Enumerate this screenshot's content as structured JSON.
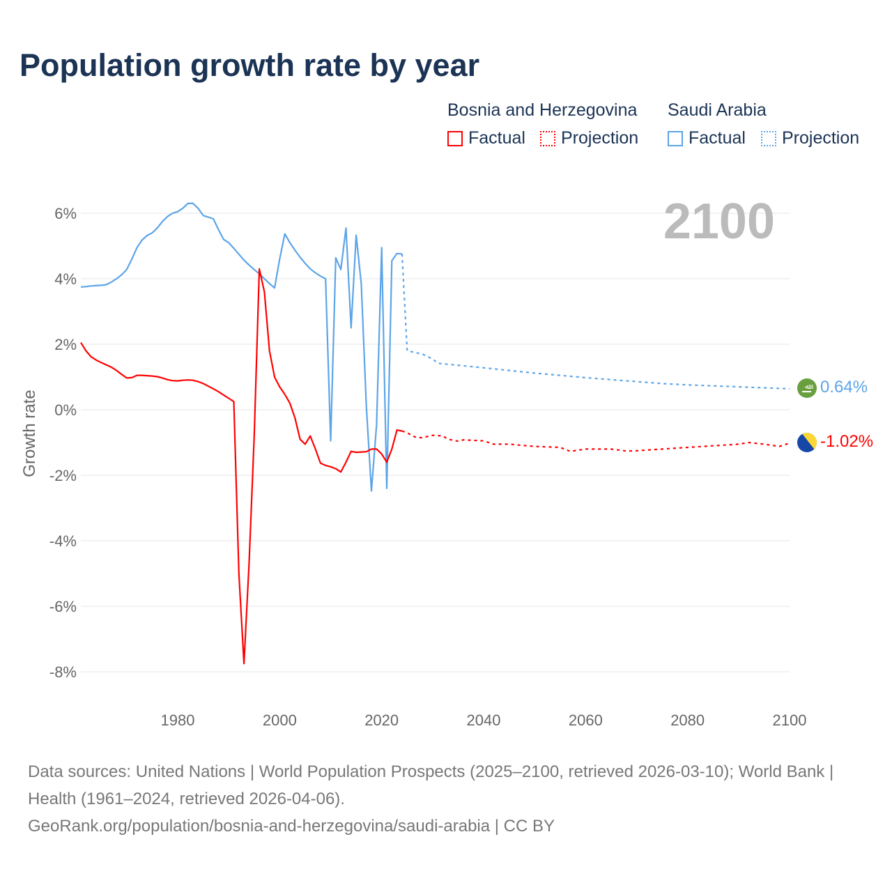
{
  "title": "Population growth rate by year",
  "legend": {
    "groups": [
      {
        "name": "Bosnia and Herzegovina",
        "factual": "Factual",
        "projection": "Projection",
        "color": "#ff0000"
      },
      {
        "name": "Saudi Arabia",
        "factual": "Factual",
        "projection": "Projection",
        "color": "#5ca4e8"
      }
    ]
  },
  "year_label": "2100",
  "end_labels": {
    "saudi": "0.64%",
    "bosnia": "-1.02%"
  },
  "source_lines": [
    "Data sources: United Nations | World Population Prospects (2025–2100, retrieved 2026-03-10); World Bank | Health (1961–2024, retrieved 2026-04-06).",
    "GeoRank.org/population/bosnia-and-herzegovina/saudi-arabia | CC BY"
  ],
  "chart_data": {
    "type": "line",
    "title": "Population growth rate by year",
    "xlabel": "",
    "ylabel": "Growth rate",
    "xlim": [
      1961,
      2100
    ],
    "ylim": [
      -8.8,
      6.8
    ],
    "xticks": [
      1980,
      2000,
      2020,
      2040,
      2060,
      2080,
      2100
    ],
    "xtick_labels": [
      "1980",
      "2000",
      "2020",
      "2040",
      "2060",
      "2080",
      "2100"
    ],
    "yticks": [
      6,
      4,
      2,
      0,
      -2,
      -4,
      -6,
      -8
    ],
    "ytick_labels": [
      "6%",
      "4%",
      "2%",
      "0%",
      "-2%",
      "-4%",
      "-6%",
      "-8%"
    ],
    "series": [
      {
        "name": "Saudi Arabia Factual",
        "color": "#5ca4e8",
        "style": "solid",
        "x": [
          1961,
          1962,
          1963,
          1964,
          1965,
          1966,
          1967,
          1968,
          1969,
          1970,
          1971,
          1972,
          1973,
          1974,
          1975,
          1976,
          1977,
          1978,
          1979,
          1980,
          1981,
          1982,
          1983,
          1984,
          1985,
          1986,
          1987,
          1988,
          1989,
          1990,
          1991,
          1992,
          1993,
          1994,
          1995,
          1996,
          1997,
          1998,
          1999,
          2000,
          2001,
          2002,
          2003,
          2004,
          2005,
          2006,
          2007,
          2008,
          2009,
          2010,
          2011,
          2012,
          2013,
          2014,
          2015,
          2016,
          2017,
          2018,
          2019,
          2020,
          2021,
          2022,
          2023,
          2024
        ],
        "y": [
          3.75,
          3.76,
          3.78,
          3.79,
          3.8,
          3.82,
          3.9,
          4.0,
          4.12,
          4.28,
          4.6,
          4.95,
          5.18,
          5.32,
          5.4,
          5.55,
          5.75,
          5.9,
          6.0,
          6.05,
          6.15,
          6.3,
          6.3,
          6.15,
          5.93,
          5.88,
          5.83,
          5.5,
          5.2,
          5.1,
          4.93,
          4.75,
          4.57,
          4.42,
          4.28,
          4.15,
          4.0,
          3.85,
          3.72,
          4.6,
          5.37,
          5.1,
          4.87,
          4.66,
          4.47,
          4.3,
          4.18,
          4.08,
          4.0,
          -0.95,
          4.64,
          4.28,
          5.55,
          2.5,
          5.33,
          3.85,
          0.1,
          -2.48,
          -0.45,
          4.95,
          -2.4,
          4.55,
          4.77,
          4.76
        ]
      },
      {
        "name": "Saudi Arabia Projection",
        "color": "#5ca4e8",
        "style": "dotted",
        "x": [
          2024,
          2025,
          2028,
          2030,
          2031,
          2035,
          2040,
          2045,
          2050,
          2055,
          2060,
          2065,
          2070,
          2075,
          2080,
          2085,
          2090,
          2095,
          2100
        ],
        "y": [
          4.76,
          1.8,
          1.7,
          1.55,
          1.42,
          1.36,
          1.28,
          1.2,
          1.12,
          1.05,
          0.98,
          0.92,
          0.86,
          0.8,
          0.76,
          0.73,
          0.7,
          0.67,
          0.64
        ]
      },
      {
        "name": "Bosnia and Herzegovina Factual",
        "color": "#ff0000",
        "style": "solid",
        "x": [
          1961,
          1962,
          1963,
          1964,
          1965,
          1966,
          1967,
          1968,
          1969,
          1970,
          1971,
          1972,
          1973,
          1974,
          1975,
          1976,
          1977,
          1978,
          1979,
          1980,
          1981,
          1982,
          1983,
          1984,
          1985,
          1986,
          1987,
          1988,
          1989,
          1990,
          1991,
          1992,
          1993,
          1994,
          1995,
          1996,
          1997,
          1998,
          1999,
          2000,
          2001,
          2002,
          2003,
          2004,
          2005,
          2006,
          2007,
          2008,
          2009,
          2010,
          2011,
          2012,
          2013,
          2014,
          2015,
          2016,
          2017,
          2018,
          2019,
          2020,
          2021,
          2022,
          2023,
          2024
        ],
        "y": [
          2.05,
          1.8,
          1.62,
          1.52,
          1.44,
          1.37,
          1.3,
          1.2,
          1.08,
          0.97,
          0.98,
          1.05,
          1.05,
          1.04,
          1.03,
          1.01,
          0.97,
          0.92,
          0.89,
          0.88,
          0.9,
          0.91,
          0.9,
          0.86,
          0.8,
          0.72,
          0.64,
          0.55,
          0.45,
          0.35,
          0.25,
          -5.0,
          -7.75,
          -4.7,
          -0.8,
          4.3,
          3.6,
          1.8,
          1.0,
          0.7,
          0.47,
          0.2,
          -0.25,
          -0.9,
          -1.05,
          -0.8,
          -1.2,
          -1.63,
          -1.7,
          -1.74,
          -1.8,
          -1.9,
          -1.6,
          -1.27,
          -1.3,
          -1.29,
          -1.28,
          -1.2,
          -1.2,
          -1.35,
          -1.6,
          -1.2,
          -0.62,
          -0.65
        ]
      },
      {
        "name": "Bosnia and Herzegovina Projection",
        "color": "#ff0000",
        "style": "dotted",
        "x": [
          2024,
          2025,
          2026,
          2027,
          2028,
          2030,
          2032,
          2033,
          2035,
          2036,
          2040,
          2042,
          2045,
          2050,
          2055,
          2057,
          2060,
          2065,
          2068,
          2070,
          2075,
          2080,
          2085,
          2090,
          2092,
          2095,
          2098,
          2100
        ],
        "y": [
          -0.65,
          -0.7,
          -0.8,
          -0.85,
          -0.85,
          -0.78,
          -0.8,
          -0.9,
          -0.96,
          -0.92,
          -0.95,
          -1.05,
          -1.05,
          -1.12,
          -1.15,
          -1.27,
          -1.2,
          -1.2,
          -1.26,
          -1.25,
          -1.2,
          -1.15,
          -1.1,
          -1.05,
          -1.0,
          -1.05,
          -1.12,
          -1.02
        ]
      }
    ]
  }
}
